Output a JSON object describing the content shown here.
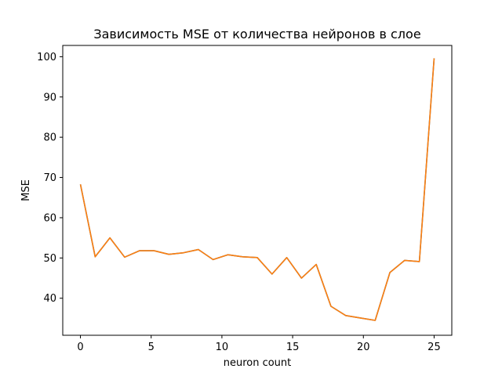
{
  "chart_data": {
    "type": "line",
    "title": "Зависимость MSE от количества нейронов в слое",
    "xlabel": "neuron count",
    "ylabel": "MSE",
    "xlim": [
      -1.25,
      26.25
    ],
    "ylim": [
      30.8,
      102.8
    ],
    "xticks": [
      0,
      5,
      10,
      15,
      20,
      25
    ],
    "yticks": [
      40,
      50,
      60,
      70,
      80,
      90,
      100
    ],
    "grid": false,
    "series": [
      {
        "color": "#1f77b4",
        "x": [
          0,
          1.042,
          2.083,
          3.125,
          4.167,
          5.208,
          6.25,
          7.292,
          8.333,
          9.375,
          10.417,
          11.458,
          12.5,
          13.542,
          14.583,
          15.625,
          16.667,
          17.708,
          18.75,
          19.792,
          20.833,
          21.875,
          22.917,
          23.958,
          25
        ],
        "y": [
          68.3,
          50.3,
          55.0,
          50.2,
          51.8,
          51.8,
          50.9,
          51.3,
          52.1,
          49.6,
          50.8,
          50.3,
          50.1,
          46.0,
          50.1,
          45.0,
          48.4,
          38.0,
          35.7,
          35.1,
          34.5,
          46.4,
          49.4,
          49.1,
          99.6
        ]
      },
      {
        "color": "#ff7f0e",
        "x": [
          0,
          1.042,
          2.083,
          3.125,
          4.167,
          5.208,
          6.25,
          7.292,
          8.333,
          9.375,
          10.417,
          11.458,
          12.5,
          13.542,
          14.583,
          15.625,
          16.667,
          17.708,
          18.75,
          19.792,
          20.833,
          21.875,
          22.917,
          23.958,
          25
        ],
        "y": [
          68.3,
          50.3,
          55.0,
          50.2,
          51.8,
          51.8,
          50.9,
          51.3,
          52.1,
          49.6,
          50.8,
          50.3,
          50.1,
          46.0,
          50.1,
          45.0,
          48.4,
          38.0,
          35.7,
          35.1,
          34.5,
          46.4,
          49.4,
          49.1,
          99.6
        ]
      }
    ]
  }
}
